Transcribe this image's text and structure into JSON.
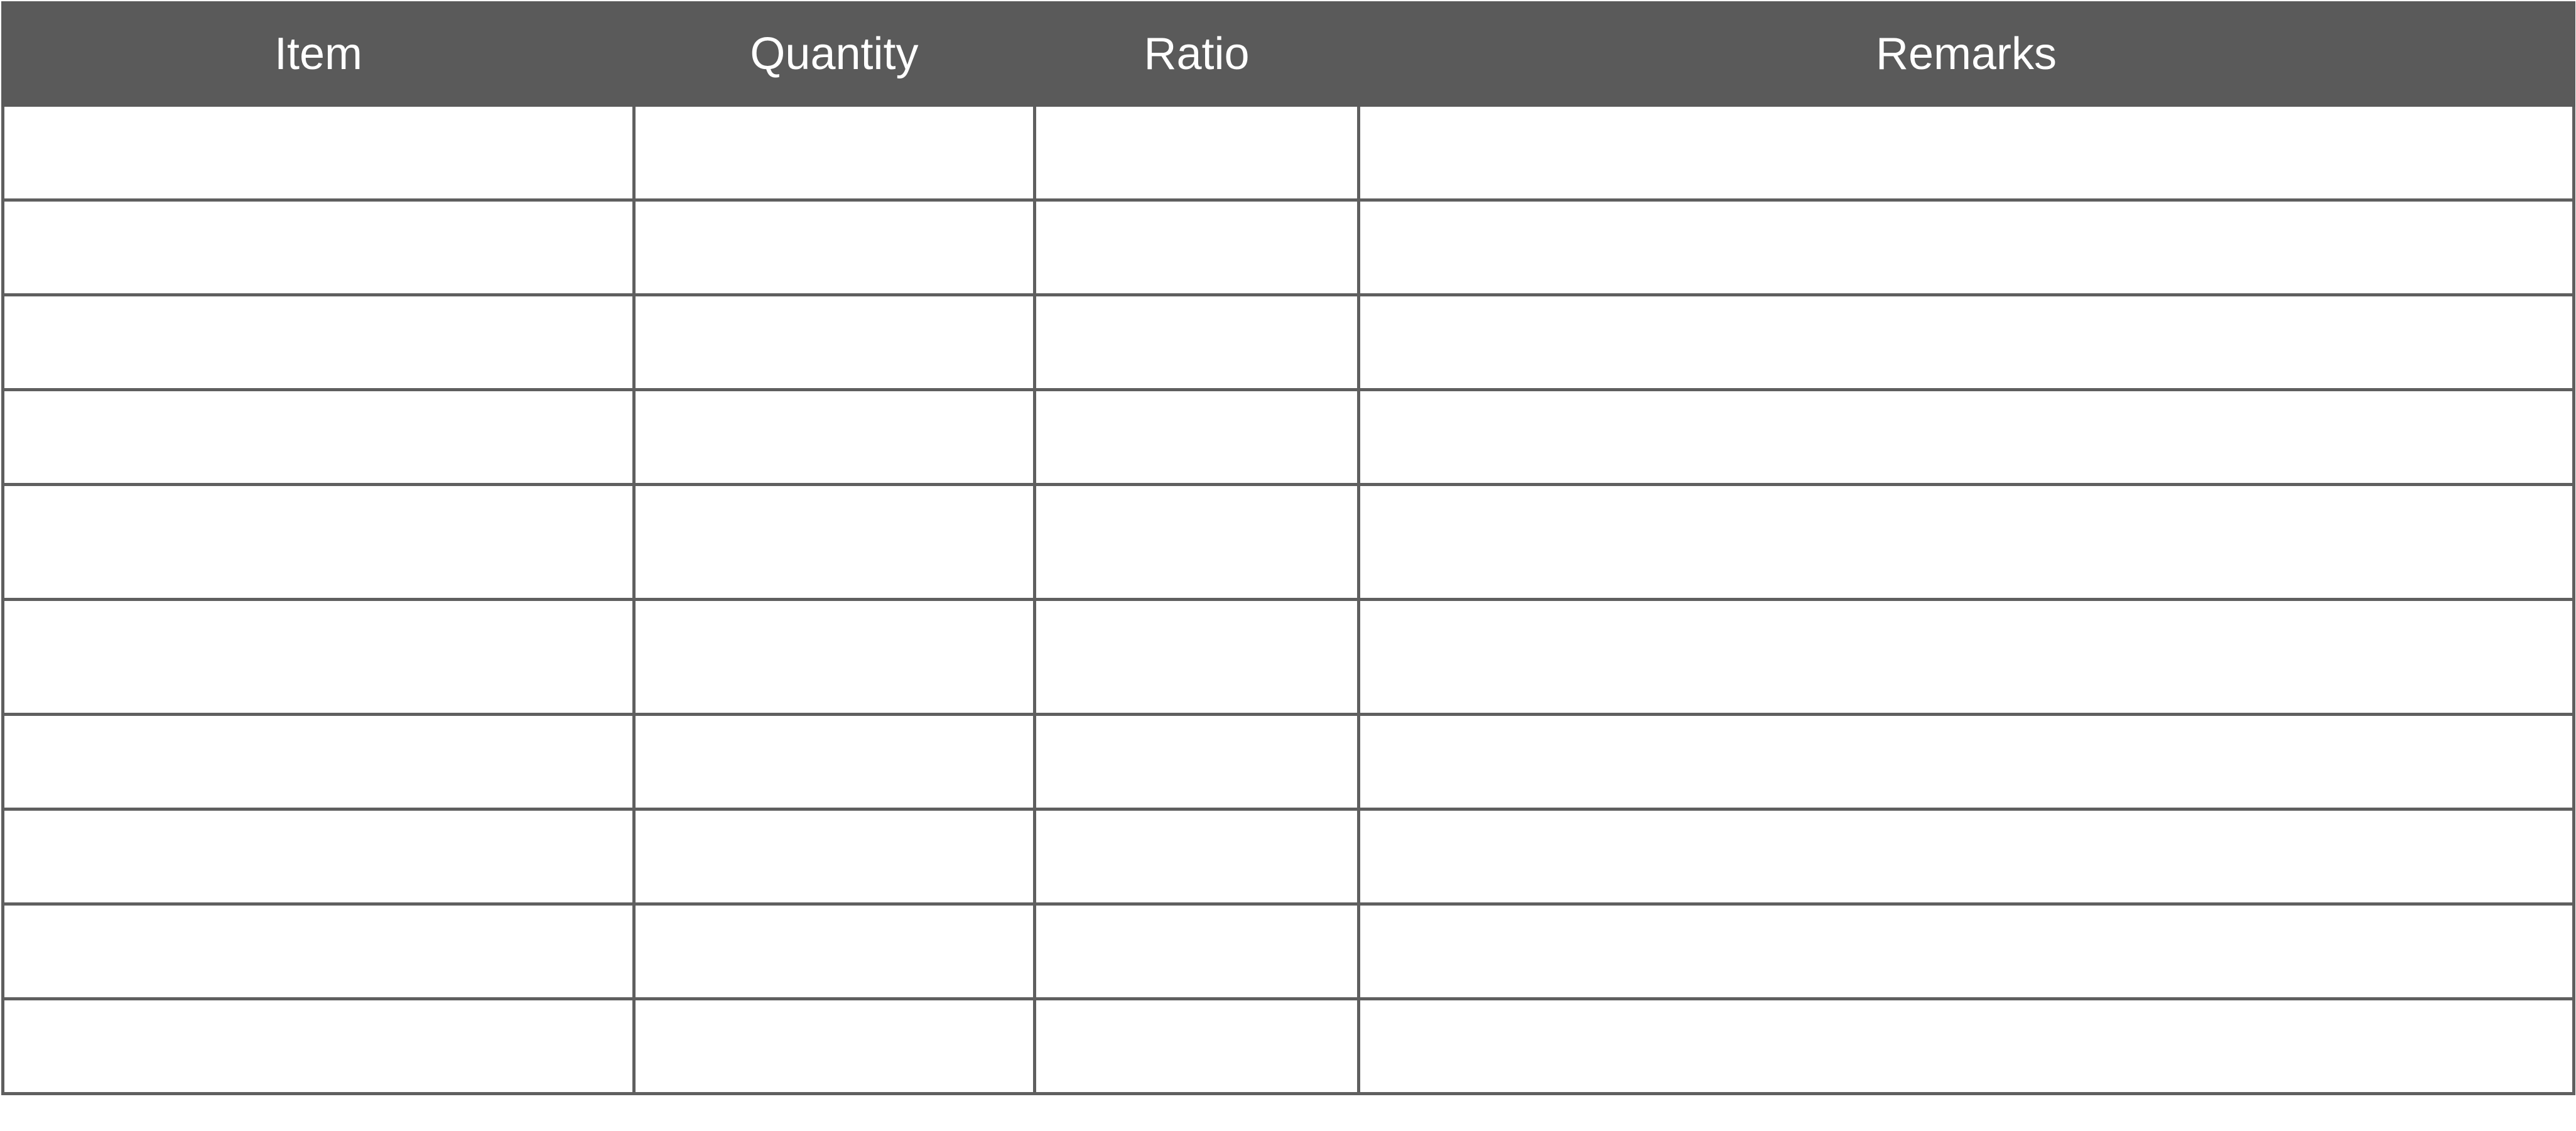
{
  "table": {
    "headers": {
      "item": "Item",
      "quantity": "Quantity",
      "ratio": "Ratio",
      "remarks": "Remarks"
    },
    "rows": [
      {
        "item": "",
        "quantity": "",
        "ratio": "",
        "remarks": ""
      },
      {
        "item": "",
        "quantity": "",
        "ratio": "",
        "remarks": ""
      },
      {
        "item": "",
        "quantity": "",
        "ratio": "",
        "remarks": ""
      },
      {
        "item": "",
        "quantity": "",
        "ratio": "",
        "remarks": ""
      },
      {
        "item": "",
        "quantity": "",
        "ratio": "",
        "remarks": ""
      },
      {
        "item": "",
        "quantity": "",
        "ratio": "",
        "remarks": ""
      },
      {
        "item": "",
        "quantity": "",
        "ratio": "",
        "remarks": ""
      },
      {
        "item": "",
        "quantity": "",
        "ratio": "",
        "remarks": ""
      },
      {
        "item": "",
        "quantity": "",
        "ratio": "",
        "remarks": ""
      },
      {
        "item": "",
        "quantity": "",
        "ratio": "",
        "remarks": ""
      }
    ]
  },
  "colors": {
    "header_background": "#5a5a5a",
    "header_text": "#ffffff",
    "grid_lines": "#5f5f5f",
    "cell_background": "#ffffff"
  }
}
